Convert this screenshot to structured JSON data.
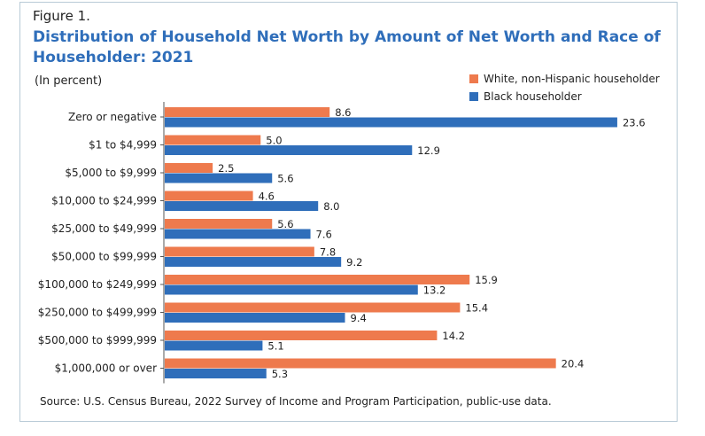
{
  "figure_label": "Figure 1.",
  "title": "Distribution of Household Net Worth by Amount of Net Worth and Race of Householder: 2021",
  "subtitle": "(In percent)",
  "source": "Source: U.S. Census Bureau, 2022 Survey of Income and Program Participation, public-use data.",
  "colors": {
    "white": "#ee7a4d",
    "black": "#2f6eba",
    "title": "#2f6eba"
  },
  "chart_data": {
    "type": "bar",
    "orientation": "horizontal",
    "categories": [
      "Zero or negative",
      "$1 to $4,999",
      "$5,000 to $9,999",
      "$10,000 to $24,999",
      "$25,000 to $49,999",
      "$50,000 to $99,999",
      "$100,000 to $249,999",
      "$250,000 to $499,999",
      "$500,000 to $999,999",
      "$1,000,000 or over"
    ],
    "series": [
      {
        "name": "White, non-Hispanic householder",
        "color": "#ee7a4d",
        "values": [
          8.6,
          5.0,
          2.5,
          4.6,
          5.6,
          7.8,
          15.9,
          15.4,
          14.2,
          20.4
        ],
        "labels": [
          "8.6",
          "5.0",
          "2.5",
          "4.6",
          "5.6",
          "7.8",
          "15.9",
          "15.4",
          "14.2",
          "20.4"
        ]
      },
      {
        "name": "Black householder",
        "color": "#2f6eba",
        "values": [
          23.6,
          12.9,
          5.6,
          8.0,
          7.6,
          9.2,
          13.2,
          9.4,
          5.1,
          5.3
        ],
        "labels": [
          "23.6",
          "12.9",
          "5.6",
          "8.0",
          "7.6",
          "9.2",
          "13.2",
          "9.4",
          "5.1",
          "5.3"
        ]
      }
    ],
    "legend_position": "top-right",
    "grid": false,
    "xlim": [
      0,
      25
    ]
  }
}
